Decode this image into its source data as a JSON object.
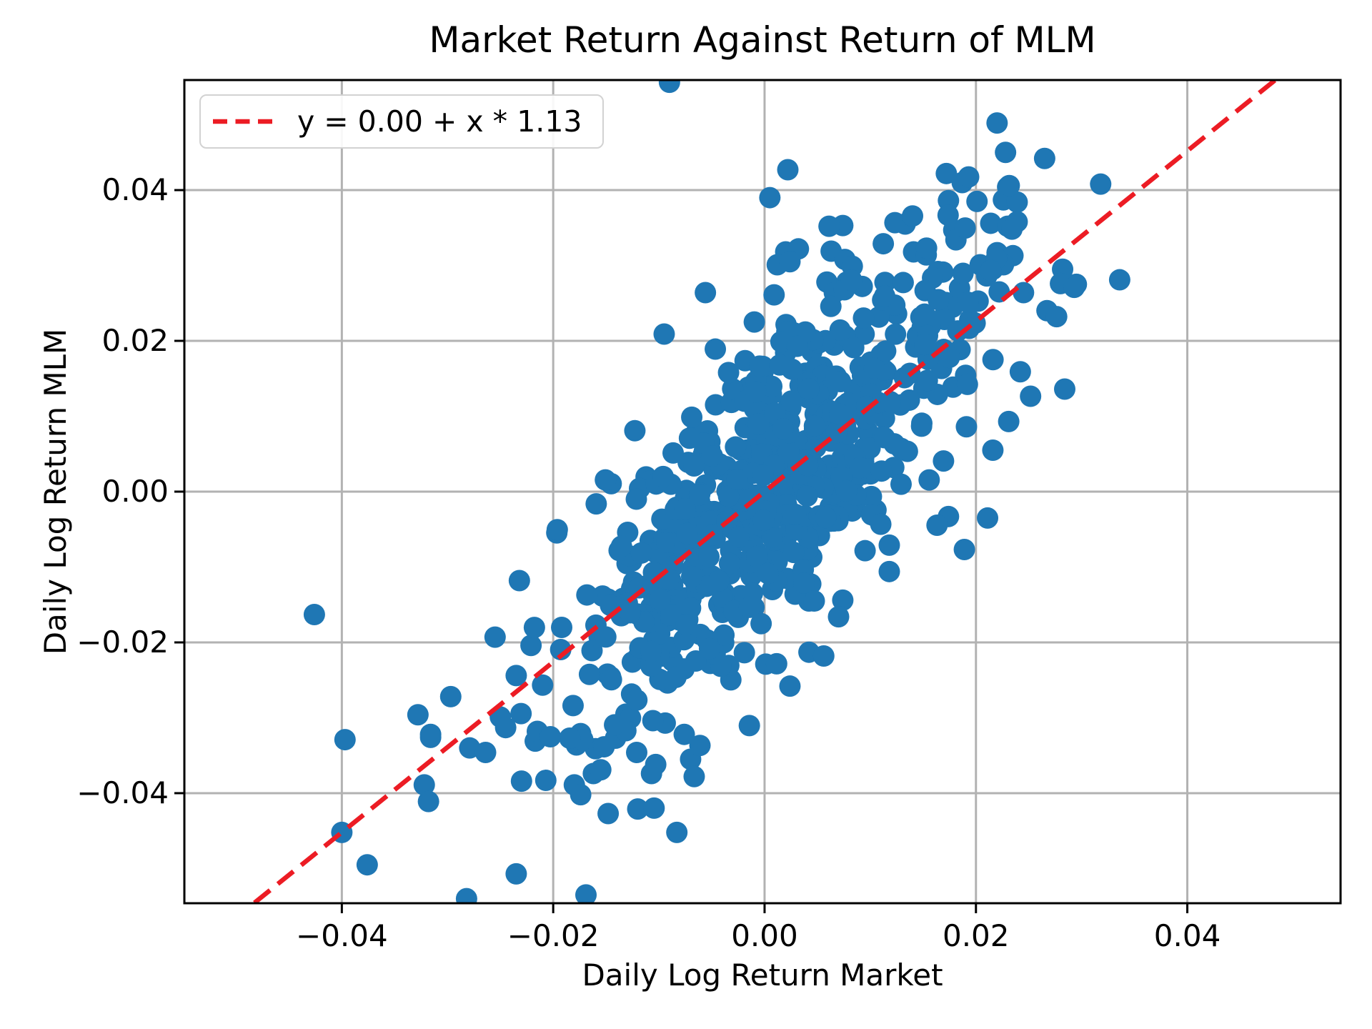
{
  "window": {
    "background": "#ffffff"
  },
  "chart_data": {
    "type": "scatter",
    "title": "Market Return Against Return of MLM",
    "xlabel": "Daily Log Return Market",
    "ylabel": "Daily Log Return MLM",
    "xlim": [
      -0.0549,
      0.0545
    ],
    "ylim": [
      -0.0546,
      0.0546
    ],
    "x_ticks": {
      "values": [
        -0.04,
        -0.02,
        0.0,
        0.02,
        0.04
      ],
      "labels": [
        "−0.04",
        "−0.02",
        "0.00",
        "0.02",
        "0.04"
      ]
    },
    "y_ticks": {
      "values": [
        -0.04,
        -0.02,
        0.0,
        0.02,
        0.04
      ],
      "labels": [
        "−0.04",
        "−0.02",
        "0.00",
        "0.02",
        "0.04"
      ]
    },
    "grid": {
      "show": true,
      "color": "#b2b2b2"
    },
    "legend": {
      "label": "y = 0.00 + x * 1.13",
      "position": "upper-left"
    },
    "fit_line": {
      "equation": "y = 0.00 + x * 1.13",
      "intercept": 0.0,
      "slope": 1.13,
      "color": "#ec1c24",
      "style": "dashed"
    },
    "scatter": {
      "color": "#1f77b4",
      "marker_radius_px": 15,
      "points": [
        [
          -0.009,
          0.0543
        ],
        [
          0.0022,
          0.0427
        ],
        [
          0.0005,
          0.039
        ],
        [
          0.022,
          0.0489
        ],
        [
          0.0228,
          0.045
        ],
        [
          0.0265,
          0.0442
        ],
        [
          0.0318,
          0.0408
        ],
        [
          0.0336,
          0.0281
        ],
        [
          0.0295,
          0.0275
        ],
        [
          0.0172,
          0.0422
        ],
        [
          0.0187,
          0.041
        ],
        [
          0.0174,
          0.0386
        ],
        [
          0.0201,
          0.0385
        ],
        [
          0.0074,
          0.0353
        ],
        [
          0.0133,
          0.0355
        ],
        [
          0.0179,
          0.0347
        ],
        [
          0.0061,
          0.0352
        ],
        [
          -0.0056,
          0.0264
        ],
        [
          -0.0095,
          0.0209
        ],
        [
          0.0009,
          0.0261
        ],
        [
          0.002,
          0.0318
        ],
        [
          0.0012,
          0.0301
        ],
        [
          0.0063,
          0.0319
        ],
        [
          0.0076,
          0.0308
        ],
        [
          0.0083,
          0.0299
        ],
        [
          0.0059,
          0.0278
        ],
        [
          0.0066,
          0.0264
        ],
        [
          0.0032,
          0.0322
        ],
        [
          0.0024,
          0.0305
        ],
        [
          0.0141,
          0.0318
        ],
        [
          0.0153,
          0.0314
        ],
        [
          0.0164,
          0.0292
        ],
        [
          0.0204,
          0.0301
        ],
        [
          0.023,
          0.0404
        ],
        [
          0.0226,
          0.0387
        ],
        [
          0.0239,
          0.0384
        ],
        [
          0.0214,
          0.0356
        ],
        [
          0.023,
          0.0352
        ],
        [
          0.0239,
          0.0358
        ],
        [
          0.022,
          0.0317
        ],
        [
          0.0235,
          0.0313
        ],
        [
          0.0216,
          0.0295
        ],
        [
          0.0226,
          0.0301
        ],
        [
          0.0222,
          0.0265
        ],
        [
          0.0245,
          0.0264
        ],
        [
          0.0282,
          0.0295
        ],
        [
          0.028,
          0.0276
        ],
        [
          0.0293,
          0.0271
        ],
        [
          0.0242,
          0.0159
        ],
        [
          0.0284,
          0.0136
        ],
        [
          0.0231,
          0.0093
        ],
        [
          0.0216,
          0.0055
        ],
        [
          0.0191,
          0.0086
        ],
        [
          0.0174,
          -0.0033
        ],
        [
          0.0211,
          -0.0035
        ],
        [
          0.0118,
          -0.0071
        ],
        [
          0.0118,
          -0.0106
        ],
        [
          0.0042,
          -0.0145
        ],
        [
          0.0074,
          -0.0144
        ],
        [
          0.007,
          -0.0166
        ],
        [
          0.0042,
          -0.0213
        ],
        [
          0.0056,
          -0.0218
        ],
        [
          0.0024,
          -0.0258
        ],
        [
          -0.0426,
          -0.0163
        ],
        [
          -0.0232,
          -0.0118
        ],
        [
          -0.0255,
          -0.0193
        ],
        [
          -0.0221,
          -0.0204
        ],
        [
          -0.0235,
          -0.0244
        ],
        [
          -0.0328,
          -0.0296
        ],
        [
          -0.0316,
          -0.0322
        ],
        [
          -0.025,
          -0.0299
        ],
        [
          -0.0245,
          -0.0313
        ],
        [
          -0.0214,
          -0.0324
        ],
        [
          -0.0174,
          -0.0321
        ],
        [
          -0.0279,
          -0.034
        ],
        [
          -0.0264,
          -0.0346
        ],
        [
          -0.016,
          -0.0341
        ],
        [
          -0.0397,
          -0.0329
        ],
        [
          -0.0322,
          -0.0389
        ],
        [
          -0.0318,
          -0.0411
        ],
        [
          -0.023,
          -0.0384
        ],
        [
          -0.0207,
          -0.0383
        ],
        [
          -0.018,
          -0.0389
        ],
        [
          -0.0174,
          -0.0402
        ],
        [
          -0.0162,
          -0.0374
        ],
        [
          -0.0107,
          -0.0374
        ],
        [
          -0.0148,
          -0.0427
        ],
        [
          -0.012,
          -0.0421
        ],
        [
          -0.0083,
          -0.0452
        ],
        [
          -0.0235,
          -0.0507
        ],
        [
          -0.0282,
          -0.054
        ],
        [
          -0.0169,
          -0.0535
        ],
        [
          -0.04,
          -0.0452
        ],
        [
          -0.0376,
          -0.0495
        ],
        [
          -0.0076,
          -0.0322
        ],
        [
          -0.0094,
          -0.0307
        ],
        [
          -0.007,
          -0.0355
        ],
        [
          -0.0121,
          -0.0346
        ],
        [
          -0.0103,
          -0.0362
        ],
        [
          -0.0155,
          -0.0369
        ],
        [
          -0.0141,
          -0.0327
        ],
        [
          -0.0178,
          -0.0336
        ],
        [
          -0.0172,
          -0.0329
        ],
        [
          -0.0217,
          -0.0331
        ],
        [
          -0.0316,
          -0.0326
        ],
        [
          -0.0215,
          -0.0318
        ]
      ],
      "dense_cloud": {
        "seed": 42,
        "count": 620,
        "x_mean": 0.0008,
        "x_sigma": 0.0093,
        "slope": 1.13,
        "intercept": 0.0004,
        "resid_sigma": 0.0098,
        "x_range": [
          -0.0345,
          0.0315
        ],
        "y_range": [
          -0.045,
          0.0435
        ]
      }
    }
  }
}
